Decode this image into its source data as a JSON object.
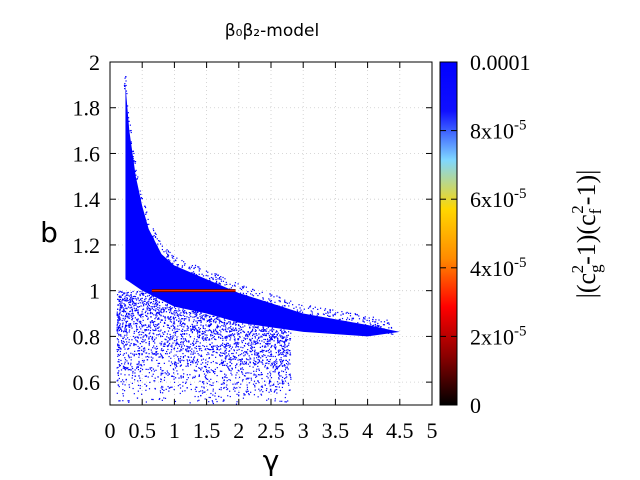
{
  "chart_data": {
    "type": "scatter",
    "title": "β₀β₂-model",
    "xlabel": "γ",
    "ylabel": "b",
    "xlim": [
      0,
      5
    ],
    "ylim": [
      0.5,
      2
    ],
    "xticks": [
      "0",
      "0.5",
      "1",
      "1.5",
      "2",
      "2.5",
      "3",
      "3.5",
      "4",
      "4.5",
      "5"
    ],
    "yticks": [
      "0.6",
      "0.8",
      "1",
      "1.2",
      "1.4",
      "1.6",
      "1.8",
      "2"
    ],
    "grid": true,
    "colorbar": {
      "label_main": "|(c",
      "label_sub1": "g",
      "label_sup1": "2",
      "label_mid": "-1)(c",
      "label_sub2": "f",
      "label_sup2": "2",
      "label_end": "-1)|",
      "range": [
        0,
        0.0001
      ],
      "ticks": [
        {
          "value": 0,
          "text": "0",
          "base": "0",
          "exp": ""
        },
        {
          "value": 2e-05,
          "text": "2x10-5",
          "base": "2x10",
          "exp": "-5"
        },
        {
          "value": 4e-05,
          "text": "4x10-5",
          "base": "4x10",
          "exp": "-5"
        },
        {
          "value": 6e-05,
          "text": "6x10-5",
          "base": "6x10",
          "exp": "-5"
        },
        {
          "value": 8e-05,
          "text": "8x10-5",
          "base": "8x10",
          "exp": "-5"
        },
        {
          "value": 0.0001,
          "text": "0.0001",
          "base": "0.0001",
          "exp": ""
        }
      ],
      "colors": [
        "#000000",
        "#8b0000",
        "#ff0000",
        "#ff8c00",
        "#ffd700",
        "#7fd7ff",
        "#1010ff",
        "#0000ff"
      ]
    },
    "series": [
      {
        "dense_region_upper_boundary": [
          [
            0.24,
            1.9
          ],
          [
            0.3,
            1.7
          ],
          [
            0.4,
            1.5
          ],
          [
            0.5,
            1.37
          ],
          [
            0.6,
            1.27
          ],
          [
            0.8,
            1.16
          ],
          [
            1.0,
            1.11
          ],
          [
            1.5,
            1.05
          ],
          [
            2.0,
            0.99
          ],
          [
            3.0,
            0.9
          ],
          [
            4.0,
            0.85
          ],
          [
            4.5,
            0.82
          ]
        ],
        "dense_region_lower_boundary": [
          [
            0.5,
            1.0
          ],
          [
            1.0,
            0.93
          ],
          [
            1.5,
            0.9
          ],
          [
            2.0,
            0.86
          ],
          [
            3.0,
            0.82
          ],
          [
            4.0,
            0.8
          ],
          [
            4.5,
            0.82
          ]
        ],
        "sparse_region_range": {
          "gamma": [
            0.1,
            2.8
          ],
          "b": [
            0.5,
            1.0
          ]
        },
        "highlight_line": {
          "b": 1.0,
          "gamma": [
            0.65,
            1.95
          ],
          "value": 2e-05
        }
      }
    ]
  }
}
